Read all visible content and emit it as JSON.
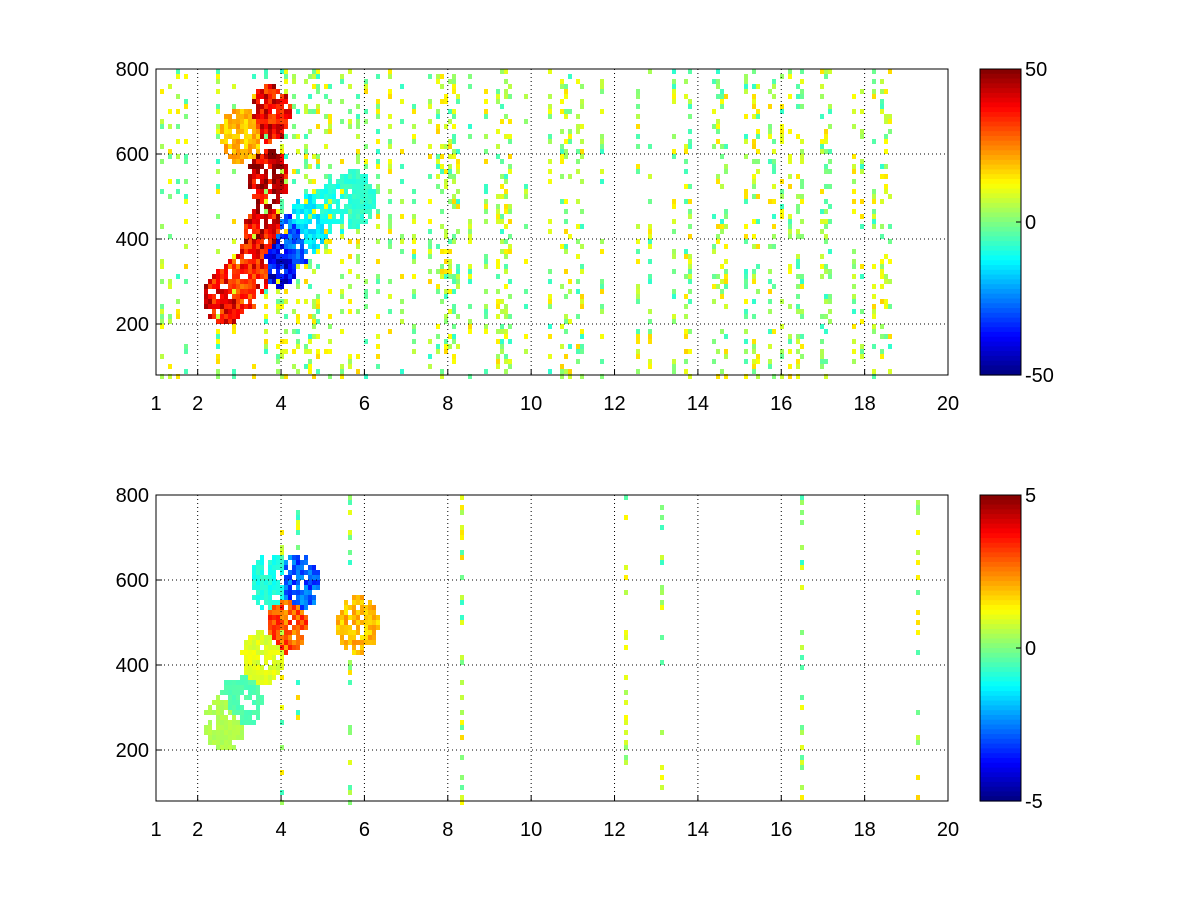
{
  "chart_data": [
    {
      "type": "heatmap",
      "title": "",
      "xlabel": "",
      "ylabel": "",
      "xlim": [
        1,
        20
      ],
      "ylim": [
        80,
        800
      ],
      "x_ticks": [
        1,
        2,
        4,
        6,
        8,
        10,
        12,
        14,
        16,
        18,
        20
      ],
      "x_tick_labels": [
        "1",
        "2",
        "4",
        "6",
        "8",
        "10",
        "12",
        "14",
        "16",
        "18",
        "20"
      ],
      "y_ticks": [
        200,
        400,
        600,
        800
      ],
      "y_tick_labels": [
        "200",
        "400",
        "600",
        "800"
      ],
      "grid": "dotted",
      "colormap": "jet",
      "clim": [
        -50,
        50
      ],
      "colorbar_ticks": [
        -50,
        0,
        50
      ],
      "colorbar_tick_labels": [
        "-50",
        "0",
        "50"
      ],
      "features": [
        {
          "x": 2.6,
          "y": 270,
          "value": 40
        },
        {
          "x": 3.0,
          "y": 300,
          "value": 35
        },
        {
          "x": 3.3,
          "y": 340,
          "value": 38
        },
        {
          "x": 3.55,
          "y": 420,
          "value": 42
        },
        {
          "x": 3.65,
          "y": 550,
          "value": 45
        },
        {
          "x": 3.7,
          "y": 700,
          "value": 40
        },
        {
          "x": 3.0,
          "y": 650,
          "value": 20
        },
        {
          "x": 3.9,
          "y": 360,
          "value": -40
        },
        {
          "x": 4.2,
          "y": 400,
          "value": -30
        },
        {
          "x": 4.6,
          "y": 440,
          "value": -15
        },
        {
          "x": 5.2,
          "y": 480,
          "value": -10
        },
        {
          "x": 5.7,
          "y": 500,
          "value": -8
        }
      ]
    },
    {
      "type": "heatmap",
      "title": "",
      "xlabel": "",
      "ylabel": "",
      "xlim": [
        1,
        20
      ],
      "ylim": [
        80,
        800
      ],
      "x_ticks": [
        1,
        2,
        4,
        6,
        8,
        10,
        12,
        14,
        16,
        18,
        20
      ],
      "x_tick_labels": [
        "1",
        "2",
        "4",
        "6",
        "8",
        "10",
        "12",
        "14",
        "16",
        "18",
        "20"
      ],
      "y_ticks": [
        200,
        400,
        600,
        800
      ],
      "y_tick_labels": [
        "200",
        "400",
        "600",
        "800"
      ],
      "grid": "dotted",
      "colormap": "jet",
      "clim": [
        -5,
        5
      ],
      "colorbar_ticks": [
        -5,
        0,
        5
      ],
      "colorbar_tick_labels": [
        "-5",
        "0",
        "5"
      ],
      "features": [
        {
          "x": 2.6,
          "y": 270,
          "value": 0.5
        },
        {
          "x": 3.0,
          "y": 320,
          "value": -0.5
        },
        {
          "x": 3.5,
          "y": 420,
          "value": 1
        },
        {
          "x": 3.7,
          "y": 600,
          "value": -1
        },
        {
          "x": 4.1,
          "y": 500,
          "value": 3
        },
        {
          "x": 4.4,
          "y": 600,
          "value": -3
        },
        {
          "x": 5.8,
          "y": 500,
          "value": 2
        }
      ]
    }
  ]
}
